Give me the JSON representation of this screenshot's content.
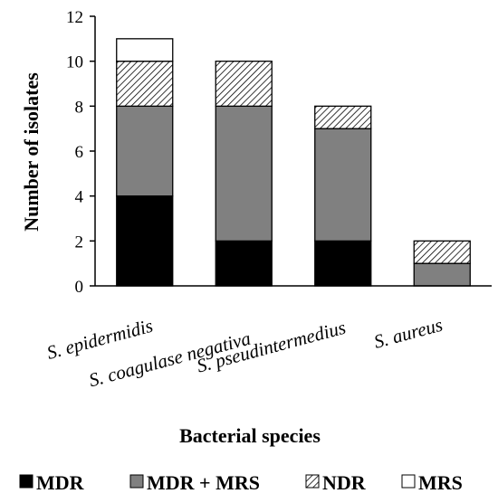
{
  "chart_data": {
    "type": "bar",
    "stacked": true,
    "title": "",
    "xlabel": "Bacterial species",
    "ylabel": "Number of isolates",
    "ylim": [
      0,
      12
    ],
    "yticks": [
      "0",
      "2",
      "4",
      "6",
      "8",
      "10",
      "12"
    ],
    "grid": false,
    "legend_position": "bottom",
    "categories": [
      "S. epidermidis",
      "S. coagulase negativa",
      "S. pseudintermedius",
      "S. aureus"
    ],
    "series": [
      {
        "name": "MDR",
        "fill": "solid",
        "color": "#000000",
        "values": [
          4,
          2,
          2,
          0
        ]
      },
      {
        "name": "MDR + MRS",
        "fill": "solid",
        "color": "#808080",
        "values": [
          4,
          6,
          5,
          1
        ]
      },
      {
        "name": "NDR",
        "fill": "hatch",
        "color": "#ffffff",
        "values": [
          2,
          2,
          1,
          1
        ]
      },
      {
        "name": "MRS",
        "fill": "solid",
        "color": "#ffffff",
        "values": [
          1,
          0,
          0,
          0
        ]
      }
    ]
  }
}
